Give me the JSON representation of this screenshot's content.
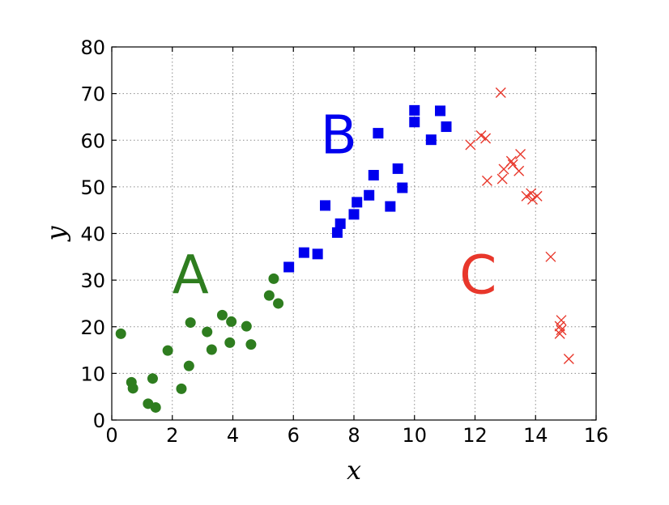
{
  "chart_data": {
    "type": "scatter",
    "xlabel": "x",
    "ylabel": "y",
    "xlim": [
      0,
      16
    ],
    "ylim": [
      0,
      80
    ],
    "xticks": [
      0,
      2,
      4,
      6,
      8,
      10,
      12,
      14,
      16
    ],
    "yticks": [
      0,
      10,
      20,
      30,
      40,
      50,
      60,
      70,
      80
    ],
    "grid": true,
    "annotations": [
      {
        "text": "A",
        "x": 2.6,
        "y": 31,
        "color": "#2e7d1f"
      },
      {
        "text": "B",
        "x": 7.5,
        "y": 61,
        "color": "#0000ee"
      },
      {
        "text": "C",
        "x": 12.1,
        "y": 31,
        "color": "#e8372b"
      }
    ],
    "series": [
      {
        "marker": "circle",
        "color": "#2e7d1f",
        "points": [
          [
            0.3,
            18.5
          ],
          [
            0.65,
            8.1
          ],
          [
            0.7,
            6.8
          ],
          [
            1.2,
            3.5
          ],
          [
            1.35,
            8.9
          ],
          [
            1.45,
            2.7
          ],
          [
            1.85,
            14.9
          ],
          [
            2.3,
            6.7
          ],
          [
            2.55,
            11.6
          ],
          [
            2.6,
            20.9
          ],
          [
            3.15,
            18.9
          ],
          [
            3.3,
            15.1
          ],
          [
            3.65,
            22.5
          ],
          [
            3.9,
            16.6
          ],
          [
            3.95,
            21.1
          ],
          [
            4.45,
            20.1
          ],
          [
            4.6,
            16.2
          ],
          [
            5.2,
            26.7
          ],
          [
            5.35,
            30.3
          ],
          [
            5.5,
            25.0
          ]
        ]
      },
      {
        "marker": "square",
        "color": "#0000ee",
        "points": [
          [
            5.85,
            32.8
          ],
          [
            6.35,
            35.9
          ],
          [
            6.8,
            35.6
          ],
          [
            7.05,
            46.0
          ],
          [
            7.45,
            40.2
          ],
          [
            7.55,
            42.1
          ],
          [
            8.0,
            44.1
          ],
          [
            8.1,
            46.7
          ],
          [
            8.5,
            48.2
          ],
          [
            8.65,
            52.5
          ],
          [
            8.8,
            61.5
          ],
          [
            9.2,
            45.8
          ],
          [
            9.45,
            53.9
          ],
          [
            9.6,
            49.8
          ],
          [
            10.0,
            66.4
          ],
          [
            10.0,
            63.9
          ],
          [
            10.55,
            60.1
          ],
          [
            10.85,
            66.3
          ],
          [
            11.05,
            62.9
          ]
        ]
      },
      {
        "marker": "x",
        "color": "#e8372b",
        "points": [
          [
            11.85,
            59.0
          ],
          [
            12.2,
            61.0
          ],
          [
            12.35,
            60.4
          ],
          [
            12.4,
            51.3
          ],
          [
            12.85,
            70.2
          ],
          [
            12.9,
            51.7
          ],
          [
            12.95,
            53.8
          ],
          [
            13.2,
            55.5
          ],
          [
            13.25,
            54.8
          ],
          [
            13.45,
            53.4
          ],
          [
            13.5,
            57.0
          ],
          [
            13.7,
            48.0
          ],
          [
            13.85,
            48.6
          ],
          [
            13.9,
            47.3
          ],
          [
            14.05,
            48.0
          ],
          [
            14.5,
            35.0
          ],
          [
            14.8,
            18.5
          ],
          [
            14.8,
            20.1
          ],
          [
            14.85,
            19.3
          ],
          [
            14.85,
            21.4
          ],
          [
            15.1,
            13.1
          ]
        ]
      }
    ]
  }
}
